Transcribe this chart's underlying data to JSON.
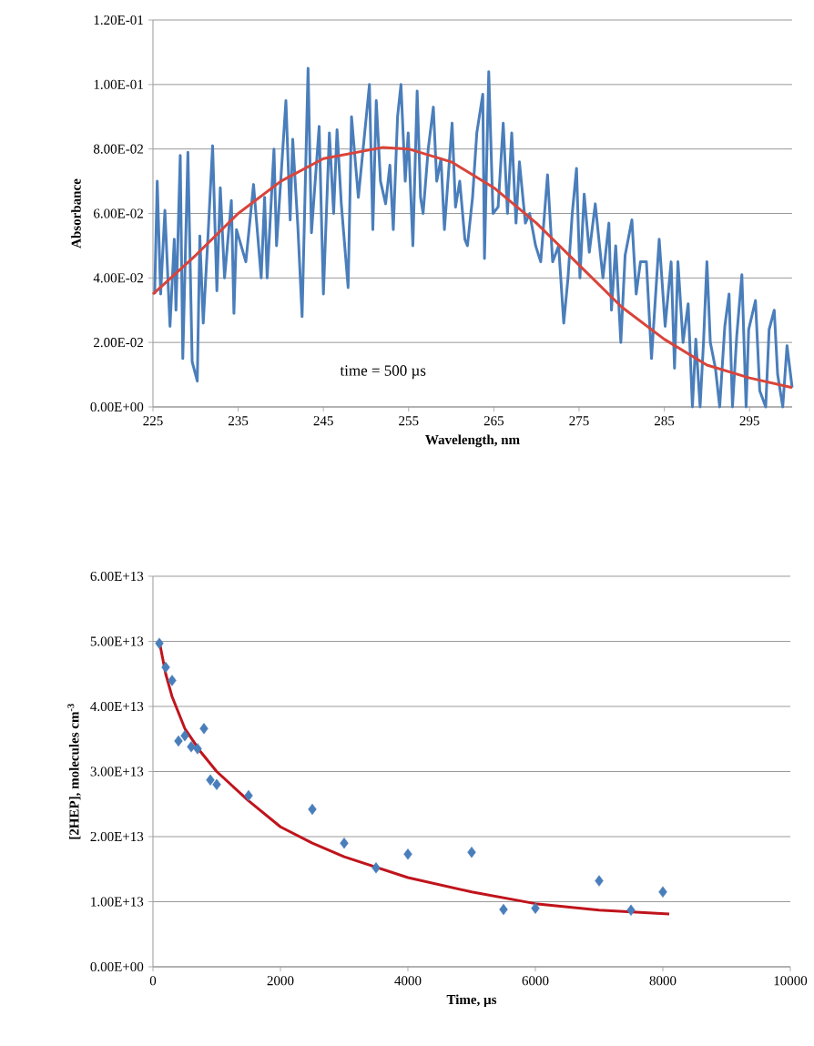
{
  "chart_data": [
    {
      "type": "line",
      "xlabel": "Wavelength, nm",
      "ylabel": "Absorbance",
      "xlim": [
        225,
        300
      ],
      "ylim": [
        0,
        0.12
      ],
      "xticks": [
        225,
        235,
        245,
        255,
        265,
        275,
        285,
        295
      ],
      "yticks": [
        {
          "value": 0,
          "label": "0.00E+00"
        },
        {
          "value": 0.02,
          "label": "2.00E-02"
        },
        {
          "value": 0.04,
          "label": "4.00E-02"
        },
        {
          "value": 0.06,
          "label": "6.00E-02"
        },
        {
          "value": 0.08,
          "label": "8.00E-02"
        },
        {
          "value": 0.1,
          "label": "1.00E-01"
        },
        {
          "value": 0.12,
          "label": "1.20E-01"
        }
      ],
      "grid": "y",
      "marker": "none",
      "annotations": [
        "time = 500 µs"
      ],
      "series": [
        {
          "color": "#4a7ebb",
          "x": [
            225.2,
            225.5,
            225.9,
            226.4,
            227.0,
            227.5,
            227.7,
            228.2,
            228.5,
            229.1,
            229.6,
            230.2,
            230.5,
            230.9,
            231.4,
            232.0,
            232.5,
            232.9,
            233.4,
            234.2,
            234.5,
            234.8,
            235.9,
            236.8,
            237.7,
            238.1,
            238.4,
            239.2,
            239.5,
            240.6,
            241.1,
            241.4,
            242.0,
            242.5,
            243.2,
            243.6,
            244.5,
            245.0,
            245.7,
            246.2,
            246.6,
            247.1,
            247.9,
            248.3,
            249.1,
            250.4,
            250.8,
            251.2,
            251.7,
            252.3,
            252.8,
            253.2,
            253.7,
            254.1,
            254.6,
            254.95,
            255.5,
            256.0,
            256.4,
            256.7,
            257.3,
            257.9,
            258.3,
            258.8,
            259.2,
            260.1,
            260.5,
            261.0,
            261.6,
            261.9,
            262.5,
            263.0,
            263.7,
            263.9,
            264.4,
            264.9,
            265.5,
            266.1,
            266.6,
            267.1,
            267.6,
            268.0,
            268.7,
            269.2,
            269.9,
            270.5,
            271.3,
            271.9,
            272.6,
            273.2,
            273.7,
            274.2,
            274.7,
            275.1,
            275.6,
            276.2,
            276.9,
            277.4,
            277.8,
            278.5,
            278.8,
            279.3,
            279.9,
            280.4,
            281.2,
            281.7,
            282.2,
            282.9,
            283.5,
            284.4,
            285.1,
            285.8,
            286.2,
            286.6,
            287.2,
            287.8,
            288.3,
            288.7,
            289.2,
            289.6,
            290.0,
            290.4,
            291.0,
            291.5,
            292.1,
            292.6,
            293.0,
            293.5,
            294.1,
            294.6,
            294.9,
            295.7,
            296.2,
            296.9,
            297.3,
            297.9,
            298.3,
            298.9,
            299.4,
            300.0
          ],
          "values": [
            0.035,
            0.07,
            0.035,
            0.061,
            0.025,
            0.052,
            0.03,
            0.078,
            0.015,
            0.079,
            0.014,
            0.008,
            0.053,
            0.026,
            0.05,
            0.081,
            0.036,
            0.068,
            0.04,
            0.064,
            0.029,
            0.055,
            0.045,
            0.069,
            0.04,
            0.065,
            0.04,
            0.08,
            0.05,
            0.095,
            0.058,
            0.083,
            0.056,
            0.028,
            0.105,
            0.054,
            0.087,
            0.035,
            0.085,
            0.06,
            0.086,
            0.063,
            0.037,
            0.09,
            0.065,
            0.1,
            0.055,
            0.095,
            0.07,
            0.063,
            0.075,
            0.055,
            0.09,
            0.1,
            0.07,
            0.085,
            0.05,
            0.098,
            0.065,
            0.06,
            0.08,
            0.093,
            0.07,
            0.077,
            0.055,
            0.088,
            0.062,
            0.07,
            0.052,
            0.05,
            0.065,
            0.085,
            0.097,
            0.046,
            0.104,
            0.06,
            0.062,
            0.088,
            0.06,
            0.085,
            0.057,
            0.076,
            0.057,
            0.06,
            0.05,
            0.045,
            0.072,
            0.045,
            0.05,
            0.026,
            0.04,
            0.06,
            0.074,
            0.04,
            0.066,
            0.048,
            0.063,
            0.05,
            0.04,
            0.057,
            0.03,
            0.05,
            0.02,
            0.047,
            0.058,
            0.035,
            0.045,
            0.045,
            0.015,
            0.052,
            0.025,
            0.045,
            0.012,
            0.045,
            0.02,
            0.032,
            0,
            0.021,
            0,
            0.02,
            0.045,
            0.02,
            0.012,
            0,
            0.025,
            0.035,
            0,
            0.022,
            0.041,
            0,
            0.024,
            0.033,
            0.005,
            0,
            0.024,
            0.03,
            0.01,
            0,
            0.019,
            0.006
          ]
        },
        {
          "color": "#d9443a",
          "x": [
            225,
            230,
            235,
            240,
            245,
            252,
            255,
            260,
            265,
            270,
            275,
            280,
            285,
            290,
            295,
            300
          ],
          "values": [
            0.035,
            0.047,
            0.06,
            0.07,
            0.077,
            0.0805,
            0.08,
            0.076,
            0.068,
            0.057,
            0.044,
            0.031,
            0.021,
            0.013,
            0.009,
            0.006
          ]
        }
      ]
    },
    {
      "type": "scatter",
      "xlabel": "Time, µs",
      "ylabel": "[2HEP], molecules cm$^{-3}$",
      "xlim": [
        0,
        10000
      ],
      "ylim": [
        0,
        60000000000000.0
      ],
      "xticks": [
        0,
        2000,
        4000,
        6000,
        8000,
        10000
      ],
      "yticks": [
        {
          "value": 0,
          "label": "0.00E+00"
        },
        {
          "value": 10000000000000.0,
          "label": "1.00E+13"
        },
        {
          "value": 20000000000000.0,
          "label": "2.00E+13"
        },
        {
          "value": 30000000000000.0,
          "label": "3.00E+13"
        },
        {
          "value": 40000000000000.0,
          "label": "4.00E+13"
        },
        {
          "value": 50000000000000.0,
          "label": "5.00E+13"
        },
        {
          "value": 60000000000000.0,
          "label": "6.00E+13"
        }
      ],
      "grid": "y",
      "series": [
        {
          "marker": "diamond",
          "color": "#4a7ebb",
          "x": [
            100,
            200,
            300,
            400,
            500,
            600,
            700,
            800,
            900,
            1000,
            1500,
            2500,
            3000,
            3500,
            4000,
            5000,
            5500,
            6000,
            7000,
            7500,
            8000
          ],
          "values": [
            49700000000000.0,
            46000000000000.0,
            44000000000000.0,
            34700000000000.0,
            35500000000000.0,
            33800000000000.0,
            33500000000000.0,
            36600000000000.0,
            28700000000000.0,
            28000000000000.0,
            26300000000000.0,
            24200000000000.0,
            19000000000000.0,
            15200000000000.0,
            17300000000000.0,
            17600000000000.0,
            8800000000000.0,
            9000000000000.0,
            13200000000000.0,
            8700000000000.0,
            11500000000000.0
          ]
        },
        {
          "type": "line",
          "marker": "none",
          "color": "#c0141c",
          "x": [
            100,
            200,
            300,
            500,
            750,
            1000,
            1500,
            2000,
            2500,
            3000,
            4000,
            5000,
            6000,
            7000,
            8100
          ],
          "values": [
            50000000000000.0,
            45000000000000.0,
            41500000000000.0,
            36600000000000.0,
            33000000000000.0,
            30000000000000.0,
            25500000000000.0,
            21500000000000.0,
            19000000000000.0,
            16900000000000.0,
            13700000000000.0,
            11500000000000.0,
            9700000000000.0,
            8700000000000.0,
            8100000000000.0
          ]
        }
      ]
    }
  ]
}
